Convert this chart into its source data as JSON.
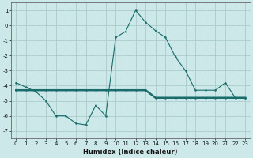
{
  "xlabel": "Humidex (Indice chaleur)",
  "bg_color": "#cce8e8",
  "grid_color": "#aacccc",
  "line_color": "#1a6b6b",
  "line1_x": [
    0,
    1,
    2,
    3,
    4,
    5,
    6,
    7,
    8,
    9,
    10,
    11,
    12,
    13,
    14,
    15,
    16,
    17,
    18,
    19,
    20,
    21,
    22,
    23
  ],
  "line1_y": [
    -3.8,
    -4.1,
    -4.4,
    -5.0,
    -6.0,
    -6.0,
    -6.5,
    -6.6,
    -5.3,
    -6.0,
    -0.8,
    -0.4,
    1.0,
    0.2,
    -0.35,
    -0.8,
    -2.1,
    -3.0,
    -4.3,
    -4.3,
    -4.3,
    -3.8,
    -4.8,
    -4.8
  ],
  "line2_x": [
    0,
    1,
    2,
    3,
    4,
    5,
    6,
    7,
    8,
    9,
    10,
    11,
    12,
    13,
    14,
    15,
    16,
    17,
    18,
    19,
    20,
    21,
    22,
    23
  ],
  "line2_y": [
    -4.3,
    -4.3,
    -4.3,
    -4.3,
    -4.3,
    -4.3,
    -4.3,
    -4.3,
    -4.3,
    -4.3,
    -4.3,
    -4.3,
    -4.3,
    -4.3,
    -4.8,
    -4.8,
    -4.8,
    -4.8,
    -4.8,
    -4.8,
    -4.8,
    -4.8,
    -4.8,
    -4.8
  ],
  "ylim": [
    -7.5,
    1.5
  ],
  "xlim": [
    -0.5,
    23.5
  ],
  "yticks": [
    1,
    0,
    -1,
    -2,
    -3,
    -4,
    -5,
    -6,
    -7
  ],
  "xticks": [
    0,
    1,
    2,
    3,
    4,
    5,
    6,
    7,
    8,
    9,
    10,
    11,
    12,
    13,
    14,
    15,
    16,
    17,
    18,
    19,
    20,
    21,
    22,
    23
  ],
  "xlabel_fontsize": 6.0,
  "tick_fontsize": 5.0,
  "line1_lw": 0.8,
  "line2_lw": 1.8,
  "marker_size": 1.8
}
